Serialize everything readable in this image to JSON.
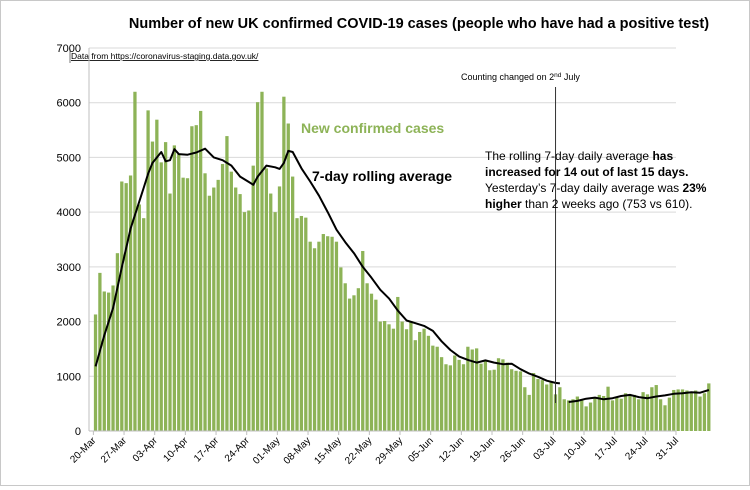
{
  "chart_data": {
    "type": "bar",
    "title": "Number of new UK confirmed COVID-19 cases (people who have had a positive test)",
    "source_note": "Data from https://coronavirus-staging.data.gov.uk/",
    "ylim": [
      0,
      7000
    ],
    "yticks": [
      0,
      1000,
      2000,
      3000,
      4000,
      5000,
      6000,
      7000
    ],
    "xtick_labels": [
      "20-Mar",
      "27-Mar",
      "03-Apr",
      "10-Apr",
      "17-Apr",
      "24-Apr",
      "01-May",
      "08-May",
      "15-May",
      "22-May",
      "29-May",
      "05-Jun",
      "12-Jun",
      "19-Jun",
      "26-Jun",
      "03-Jul",
      "10-Jul",
      "17-Jul",
      "24-Jul",
      "31-Jul"
    ],
    "tick_start_day": 1,
    "bar_start_day": 1,
    "bar_color": "#8db357",
    "series": [
      {
        "name": "New confirmed cases",
        "type": "bar",
        "color": "#8db357",
        "values": [
          2130,
          2890,
          2550,
          2530,
          2660,
          3250,
          4560,
          4530,
          4670,
          6200,
          4140,
          3890,
          5860,
          5290,
          5690,
          4910,
          5280,
          4340,
          5220,
          5060,
          4630,
          4620,
          5570,
          5590,
          5850,
          4710,
          4300,
          4450,
          4590,
          4880,
          5390,
          4740,
          4450,
          4330,
          4000,
          4030,
          4850,
          6010,
          6200,
          4800,
          4340,
          4000,
          4470,
          6110,
          5620,
          4650,
          3890,
          3930,
          3900,
          3460,
          3340,
          3460,
          3600,
          3560,
          3550,
          3460,
          2990,
          2700,
          2420,
          2480,
          2610,
          3290,
          2700,
          2510,
          2400,
          2000,
          2010,
          1950,
          1870,
          2450,
          2000,
          1860,
          2010,
          1660,
          1810,
          1870,
          1740,
          1560,
          1540,
          1350,
          1220,
          1200,
          1380,
          1300,
          1220,
          1540,
          1490,
          1510,
          1230,
          1280,
          1110,
          1120,
          1330,
          1310,
          1250,
          1130,
          1100,
          1090,
          800,
          660,
          1060,
          950,
          930,
          850,
          900,
          670,
          800,
          580,
          560,
          580,
          630,
          560,
          450,
          520,
          620,
          660,
          640,
          810,
          560,
          620,
          590,
          690,
          650,
          660,
          580,
          710,
          670,
          800,
          840,
          580,
          470,
          610,
          750,
          760,
          760,
          740,
          720,
          740,
          630,
          690,
          870
        ]
      },
      {
        "name": "7-day rolling average",
        "type": "line",
        "color": "#000000",
        "segments": [
          [
            [
              1,
              1180
            ],
            [
              3,
              1750
            ],
            [
              5,
              2250
            ],
            [
              7,
              3000
            ],
            [
              9,
              3700
            ],
            [
              11,
              4200
            ],
            [
              12,
              4450
            ],
            [
              13,
              4700
            ],
            [
              14,
              4900
            ],
            [
              16,
              5100
            ],
            [
              17,
              4930
            ],
            [
              18,
              4950
            ],
            [
              19,
              5150
            ],
            [
              20,
              5060
            ],
            [
              22,
              5050
            ],
            [
              24,
              5090
            ],
            [
              26,
              5160
            ],
            [
              28,
              5000
            ],
            [
              30,
              4950
            ],
            [
              32,
              4850
            ],
            [
              34,
              4650
            ],
            [
              36,
              4550
            ],
            [
              37,
              4500
            ],
            [
              38,
              4650
            ],
            [
              40,
              4850
            ],
            [
              42,
              4820
            ],
            [
              43,
              4790
            ],
            [
              44,
              4900
            ],
            [
              45,
              5120
            ],
            [
              46,
              5100
            ],
            [
              48,
              4800
            ],
            [
              50,
              4560
            ],
            [
              52,
              4300
            ],
            [
              54,
              4000
            ],
            [
              56,
              3680
            ],
            [
              58,
              3450
            ],
            [
              60,
              3250
            ],
            [
              62,
              3000
            ],
            [
              64,
              2800
            ],
            [
              66,
              2580
            ],
            [
              68,
              2420
            ],
            [
              70,
              2200
            ],
            [
              72,
              2020
            ],
            [
              74,
              1970
            ],
            [
              76,
              1920
            ],
            [
              78,
              1830
            ],
            [
              80,
              1640
            ],
            [
              82,
              1480
            ],
            [
              84,
              1360
            ],
            [
              86,
              1300
            ],
            [
              88,
              1250
            ],
            [
              90,
              1290
            ],
            [
              92,
              1250
            ],
            [
              94,
              1220
            ],
            [
              96,
              1230
            ],
            [
              98,
              1130
            ],
            [
              100,
              1050
            ],
            [
              102,
              990
            ],
            [
              104,
              920
            ],
            [
              106,
              880
            ],
            [
              107,
              870
            ]
          ],
          [
            [
              109,
              530
            ],
            [
              111,
              550
            ],
            [
              113,
              590
            ],
            [
              115,
              610
            ],
            [
              117,
              580
            ],
            [
              119,
              600
            ],
            [
              121,
              640
            ],
            [
              123,
              660
            ],
            [
              125,
              620
            ],
            [
              127,
              600
            ],
            [
              129,
              630
            ],
            [
              131,
              650
            ],
            [
              133,
              680
            ],
            [
              135,
              690
            ],
            [
              137,
              710
            ],
            [
              139,
              700
            ],
            [
              141,
              750
            ]
          ]
        ]
      }
    ],
    "annotations": {
      "series_label_cases": "New confirmed cases",
      "series_label_avg": "7-day rolling average",
      "counting_change_prefix": "Counting changed on 2",
      "counting_change_sup": "nd",
      "counting_change_suffix": " July",
      "note_line1_normal": "The rolling 7-day daily average ",
      "note_line1_bold": "has",
      "note_line2_bold": "increased for 14 out of last 15 days.",
      "note_line3_normal": "Yesterday’s 7-day daily average was ",
      "note_line3_bold": "23%",
      "note_line4_bold": "higher",
      "note_line4_normal": " than 2 weeks ago (753 vs 610)."
    },
    "counting_change_day": 106
  }
}
